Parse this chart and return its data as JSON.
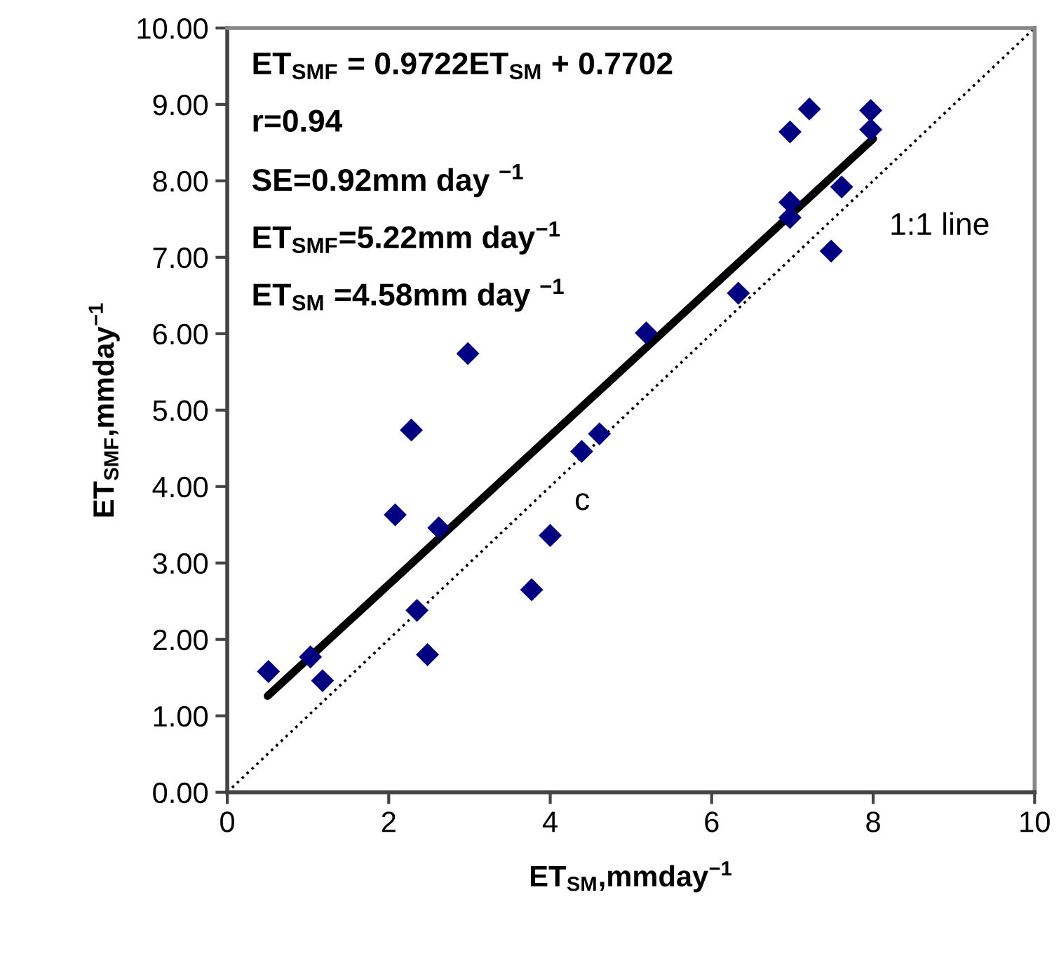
{
  "chart_data": {
    "type": "scatter",
    "xlabel": "ET$_{SM}$,mmday$^{−1}$",
    "ylabel": "ET$_{SMF}$,mmday$^{−1}$",
    "xlim": [
      0,
      10
    ],
    "xticks": [
      0,
      2,
      4,
      6,
      8,
      10
    ],
    "ylim": [
      0,
      10
    ],
    "yticks": [
      {
        "value": 0,
        "label": "0.00"
      },
      {
        "value": 1,
        "label": "1.00"
      },
      {
        "value": 2,
        "label": "2.00"
      },
      {
        "value": 3,
        "label": "3.00"
      },
      {
        "value": 4,
        "label": "4.00"
      },
      {
        "value": 5,
        "label": "5.00"
      },
      {
        "value": 6,
        "label": "6.00"
      },
      {
        "value": 7,
        "label": "7.00"
      },
      {
        "value": 8,
        "label": "8.00"
      },
      {
        "value": 9,
        "label": "9.00"
      },
      {
        "value": 10,
        "label": "10.00"
      }
    ],
    "series": [
      {
        "marker": "diamond",
        "color": "#000080",
        "x": [
          0.51,
          1.03,
          1.18,
          2.28,
          2.08,
          2.62,
          2.35,
          2.48,
          2.98,
          3.77,
          4.0,
          4.39,
          4.61,
          5.19,
          6.33,
          6.97,
          6.97,
          6.97,
          7.21,
          7.48,
          7.61,
          7.97,
          7.97
        ],
        "values": [
          1.58,
          1.77,
          1.46,
          4.74,
          3.63,
          3.46,
          2.38,
          1.8,
          5.74,
          2.65,
          3.36,
          4.46,
          4.69,
          6.01,
          6.53,
          8.64,
          7.72,
          7.52,
          8.94,
          7.08,
          7.92,
          8.92,
          8.67
        ]
      },
      {
        "type": "line",
        "color": "#000000",
        "line_style": "solid",
        "x": [
          0.5,
          8
        ],
        "values": [
          1.26,
          8.55
        ]
      },
      {
        "type": "line",
        "color": "#000000",
        "line_style": "dotted",
        "x": [
          0,
          10
        ],
        "values": [
          0,
          10
        ]
      }
    ],
    "annotations": [
      "ET$_{SMF}$ = 0.9722ET$_{SM}$ + 0.7702",
      "r=0.94",
      "SE=0.92mm day $^{−1}$",
      "ET$_{SMF}$=5.22mm day$^{−1}$",
      "ET$_{SM}$ =4.58mm day $^{−1}$",
      "c",
      "1:1 line"
    ]
  }
}
